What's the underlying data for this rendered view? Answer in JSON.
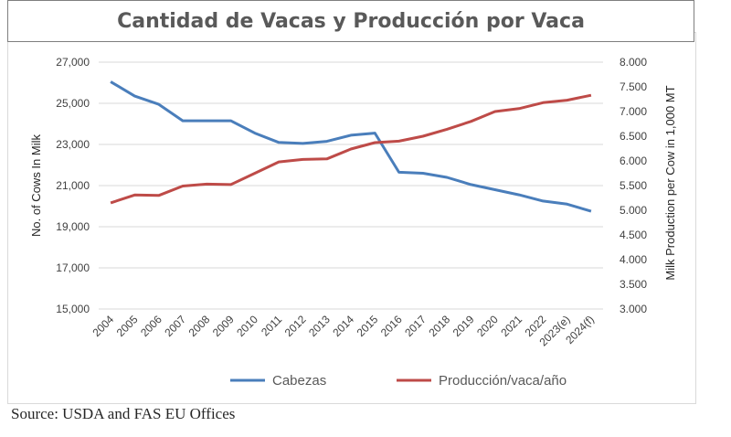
{
  "chart_data": {
    "type": "line",
    "title": "Cantidad de Vacas y Producción por Vaca",
    "categories": [
      "2004",
      "2005",
      "2006",
      "2007",
      "2008",
      "2009",
      "2010",
      "2011",
      "2012",
      "2013",
      "2014",
      "2015",
      "2016",
      "2017",
      "2018",
      "2019",
      "2020",
      "2021",
      "2022",
      "2023(e)",
      "2024(f)"
    ],
    "ylabel_left": "No. of Cows In Milk",
    "ylabel_right": "Milk Production per Cow in 1,000 MT",
    "ylim_left": [
      15000,
      27000
    ],
    "ylim_right": [
      3.0,
      8.0
    ],
    "yticks_left": [
      "15,000",
      "17,000",
      "19,000",
      "21,000",
      "23,000",
      "25,000",
      "27,000"
    ],
    "yticks_right": [
      "3.000",
      "3.500",
      "4.000",
      "4.500",
      "5.000",
      "5.500",
      "6.000",
      "6.500",
      "7.000",
      "7.500",
      "8.000"
    ],
    "series": [
      {
        "name": "Cabezas",
        "axis": "left",
        "color": "#4a7ebb",
        "values": [
          26050,
          25350,
          24950,
          24150,
          24150,
          24150,
          23550,
          23100,
          23050,
          23150,
          23450,
          23550,
          21650,
          21600,
          21400,
          21050,
          20800,
          20550,
          20250,
          20100,
          19750
        ]
      },
      {
        "name": "Producción/vaca/año",
        "axis": "right",
        "color": "#be4b48",
        "values": [
          5.15,
          5.31,
          5.3,
          5.49,
          5.53,
          5.52,
          5.75,
          5.98,
          6.03,
          6.04,
          6.24,
          6.37,
          6.4,
          6.5,
          6.64,
          6.8,
          7.0,
          7.06,
          7.18,
          7.23,
          7.33
        ]
      }
    ],
    "grid": true,
    "legend_position": "bottom"
  },
  "source": "Source: USDA and FAS EU Offices"
}
